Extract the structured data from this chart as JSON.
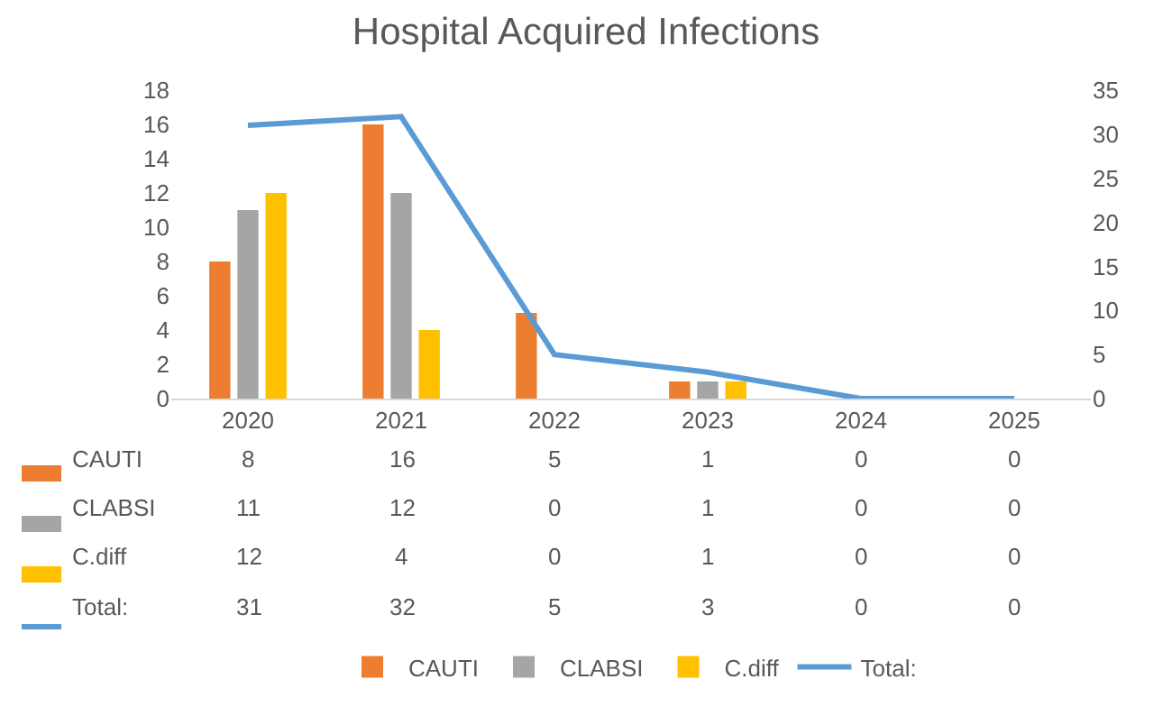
{
  "chart_data": {
    "type": "bar",
    "title": "Hospital Acquired Infections",
    "categories": [
      "2020",
      "2021",
      "2022",
      "2023",
      "2024",
      "2025"
    ],
    "series": [
      {
        "name": "CAUTI",
        "color": "#ed7d31",
        "values": [
          8,
          16,
          5,
          1,
          0,
          0
        ]
      },
      {
        "name": "CLABSI",
        "color": "#a5a5a5",
        "values": [
          11,
          12,
          0,
          1,
          0,
          0
        ]
      },
      {
        "name": "C.diff",
        "color": "#ffc000",
        "values": [
          12,
          4,
          0,
          1,
          0,
          0
        ]
      },
      {
        "name": "Total:",
        "color": "#5b9bd5",
        "type": "line",
        "axis": "y2",
        "values": [
          31,
          32,
          5,
          3,
          0,
          0
        ]
      }
    ],
    "ylim": [
      0,
      18
    ],
    "yticks": [
      0,
      2,
      4,
      6,
      8,
      10,
      12,
      14,
      16,
      18
    ],
    "y2lim": [
      0,
      35
    ],
    "y2ticks": [
      0,
      5,
      10,
      15,
      20,
      25,
      30,
      35
    ],
    "data_labels": true,
    "legend": "bottom"
  }
}
